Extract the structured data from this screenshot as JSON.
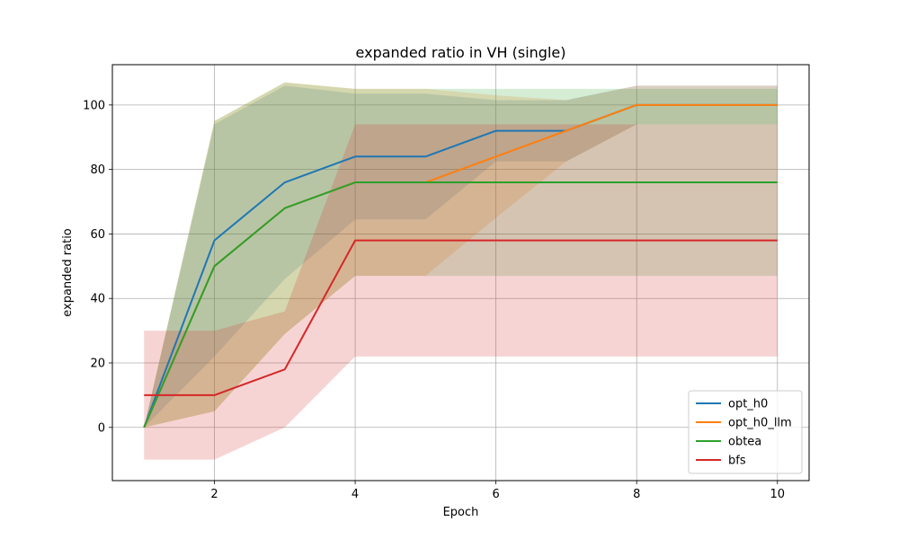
{
  "chart_data": {
    "type": "line",
    "title": "expanded ratio in VH (single)",
    "xlabel": "Epoch",
    "ylabel": "expanded ratio",
    "x": [
      1,
      2,
      3,
      4,
      5,
      6,
      7,
      8,
      9,
      10
    ],
    "xlim": [
      0.55,
      10.45
    ],
    "ylim": [
      -16.5,
      112.5
    ],
    "xticks": [
      2,
      4,
      6,
      8,
      10
    ],
    "yticks": [
      0,
      20,
      40,
      60,
      80,
      100
    ],
    "grid": true,
    "legend_position": "lower-right",
    "series": [
      {
        "name": "opt_h0",
        "color": "#1f77b4",
        "values": [
          0,
          58,
          76,
          84,
          84,
          92,
          92,
          100,
          100,
          100
        ],
        "lower": [
          0,
          22,
          46,
          64.5,
          64.5,
          82.5,
          82.5,
          94,
          94,
          94
        ],
        "upper": [
          0,
          94,
          106,
          103.5,
          103.5,
          101.5,
          101.5,
          106,
          106,
          106
        ]
      },
      {
        "name": "opt_h0_llm",
        "color": "#ff7f0e",
        "values": [
          0,
          50,
          68,
          76,
          76,
          84,
          92,
          100,
          100,
          100
        ],
        "lower": [
          0,
          5,
          29,
          47,
          47,
          65,
          82.5,
          94,
          94,
          94
        ],
        "upper": [
          0,
          95,
          107,
          105,
          105,
          103,
          101.5,
          106,
          106,
          106
        ]
      },
      {
        "name": "obtea",
        "color": "#2ca02c",
        "values": [
          0,
          50,
          68,
          76,
          76,
          76,
          76,
          76,
          76,
          76
        ],
        "lower": [
          0,
          5,
          29,
          47,
          47,
          47,
          47,
          47,
          47,
          47
        ],
        "upper": [
          0,
          95,
          107,
          105,
          105,
          105,
          105,
          105,
          105,
          105
        ]
      },
      {
        "name": "bfs",
        "color": "#d62728",
        "values": [
          10,
          10,
          18,
          58,
          58,
          58,
          58,
          58,
          58,
          58
        ],
        "lower": [
          -10,
          -10,
          0,
          22,
          22,
          22,
          22,
          22,
          22,
          22
        ],
        "upper": [
          30,
          30,
          36,
          94,
          94,
          94,
          94,
          94,
          94,
          94
        ]
      }
    ]
  }
}
